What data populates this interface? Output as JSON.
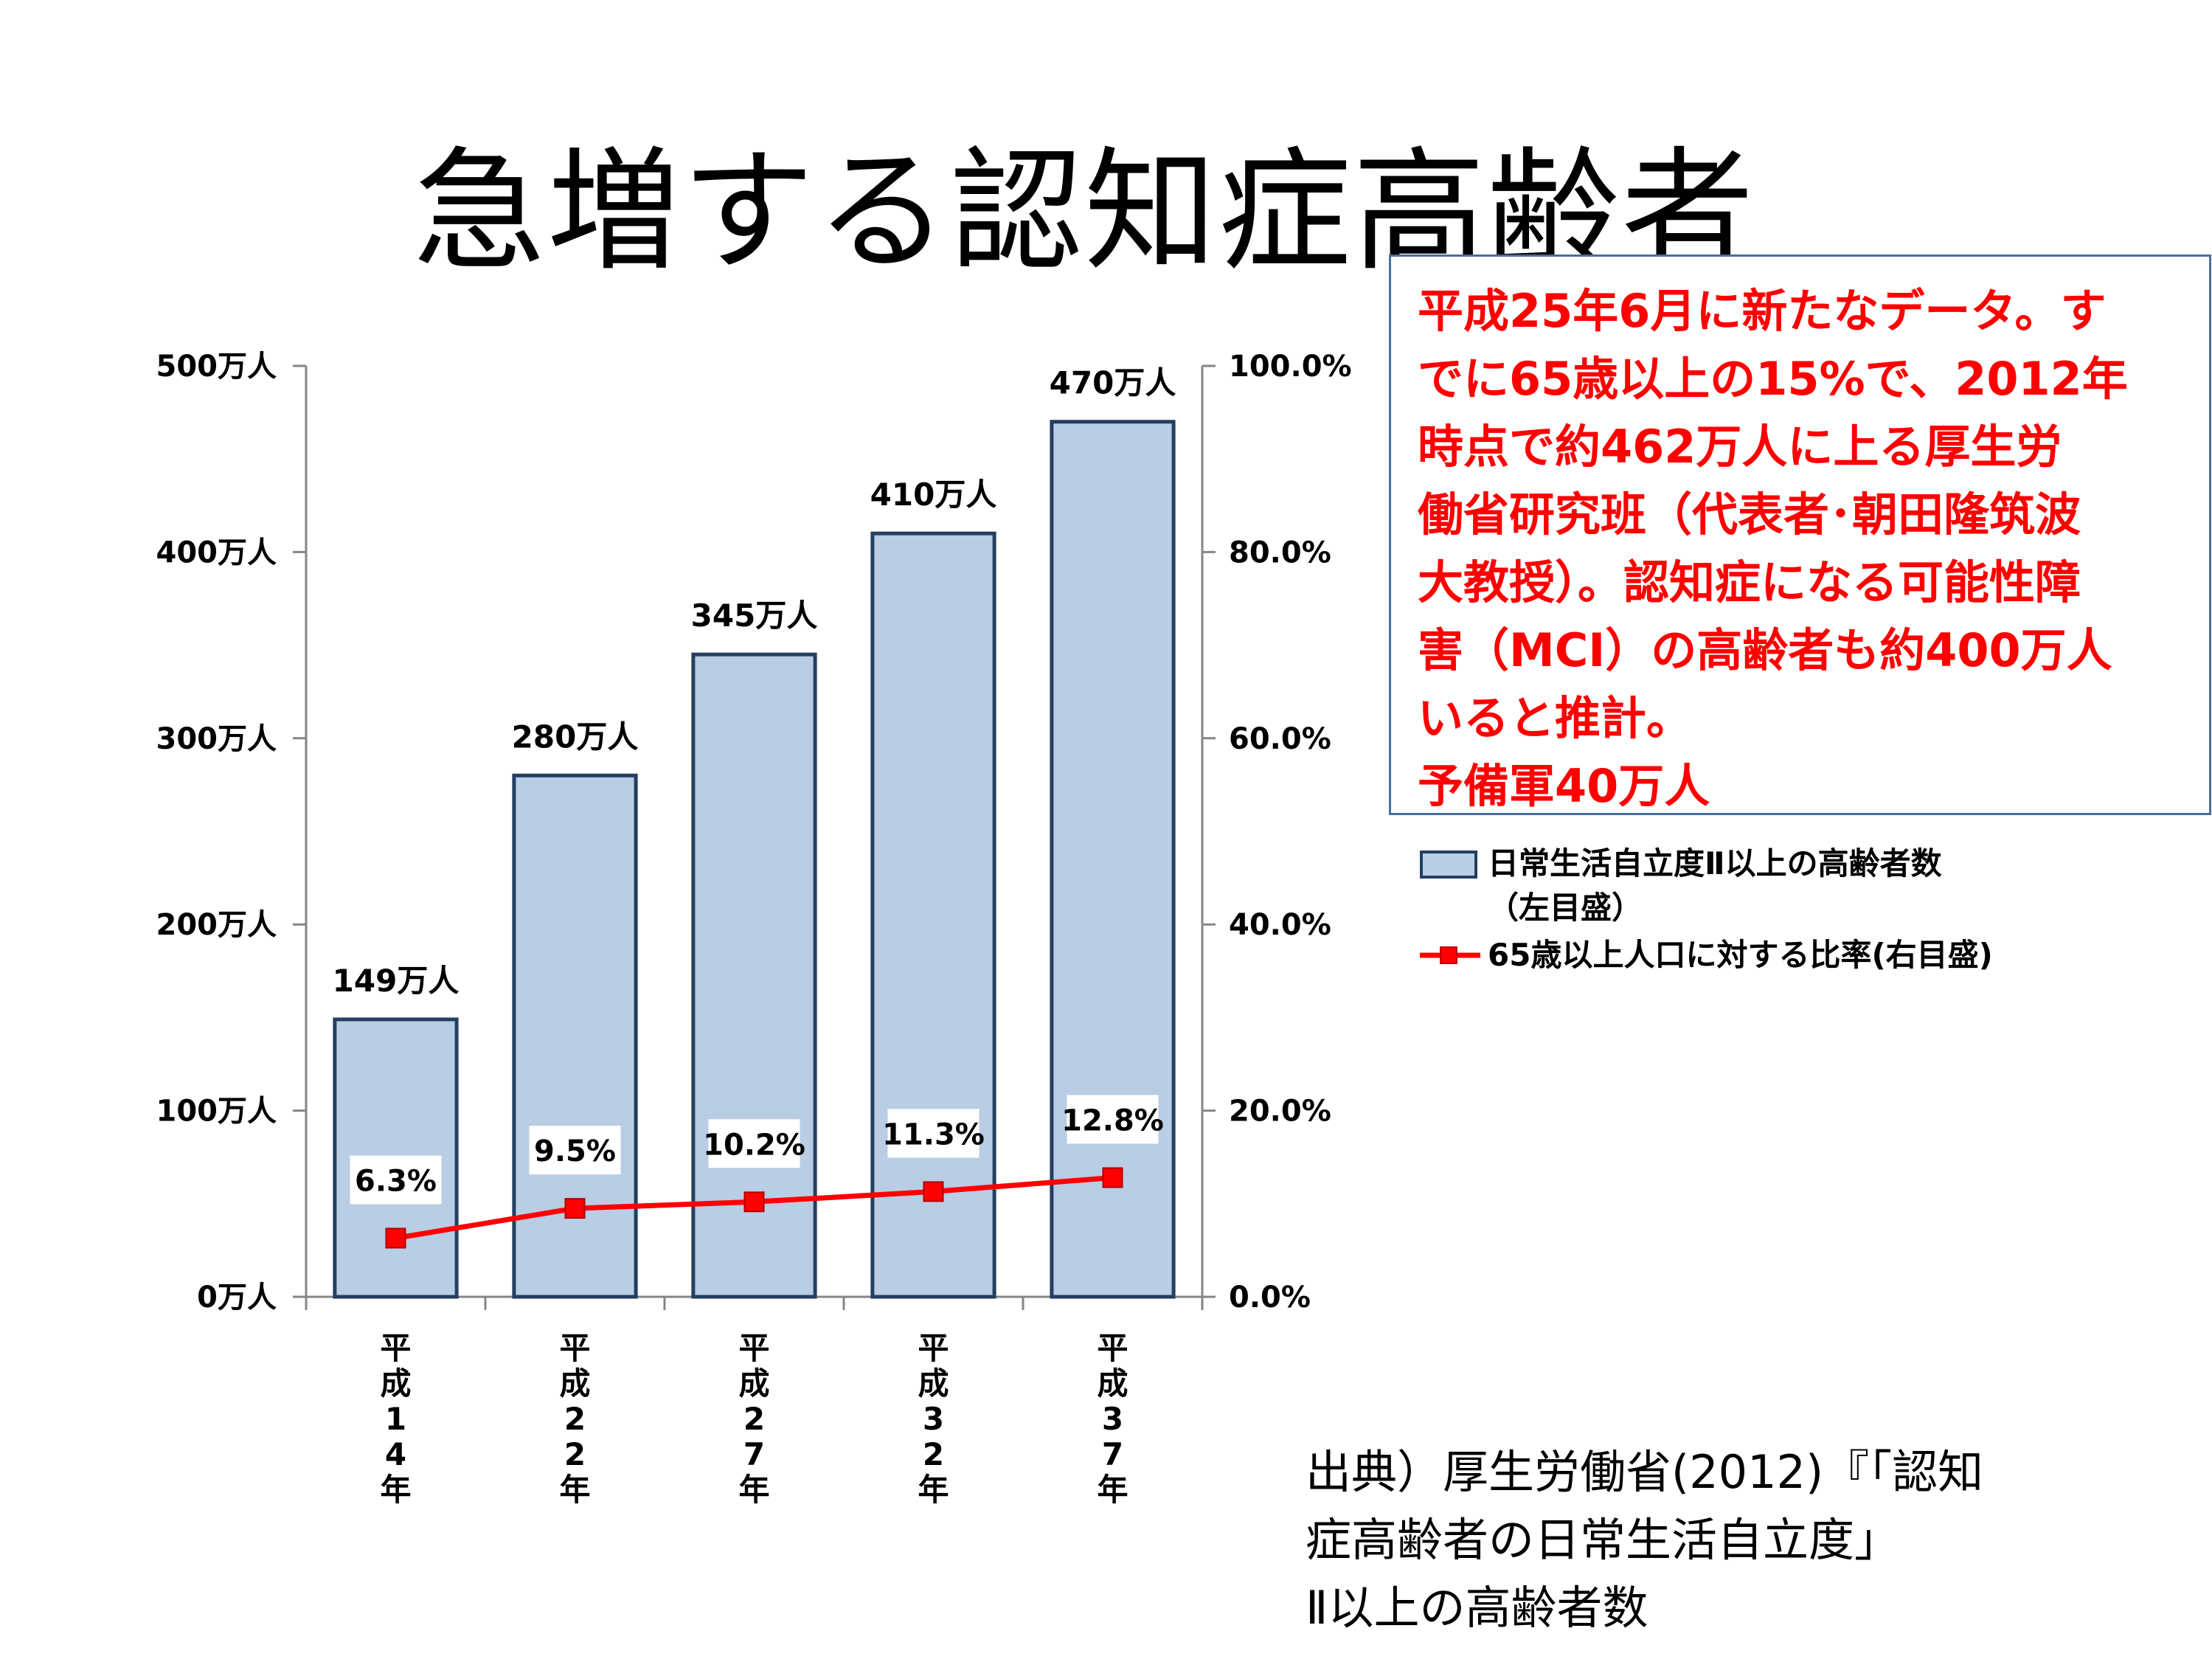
{
  "title": "急増する認知症高齢者",
  "note": {
    "lines": [
      "平成25年6月に新たなデータ。す",
      "でに65歳以上の15%で、2012年",
      "時点で約462万人に上る厚生労",
      "働省研究班（代表者･朝田隆筑波",
      "大教授）。認知症になる可能性障",
      "害（MCI）の高齢者も約400万人",
      "いると推計。",
      "予備軍40万人"
    ]
  },
  "legend": {
    "bar_label": "日常生活自立度Ⅱ以上の高齢者数",
    "bar_sublabel": "（左目盛）",
    "line_label": "65歳以上人口に対する比率(右目盛)"
  },
  "source": {
    "lines": [
      "出典）厚生労働省(2012)『「認知",
      "症高齢者の日常生活自立度」",
      "Ⅱ以上の高齢者数"
    ]
  },
  "chart_data": {
    "type": "bar",
    "categories": [
      "平成14年",
      "平成22年",
      "平成27年",
      "平成32年",
      "平成37年"
    ],
    "category_chars": [
      [
        "平",
        "成",
        "1",
        "4",
        "年"
      ],
      [
        "平",
        "成",
        "2",
        "2",
        "年"
      ],
      [
        "平",
        "成",
        "2",
        "7",
        "年"
      ],
      [
        "平",
        "成",
        "3",
        "2",
        "年"
      ],
      [
        "平",
        "成",
        "3",
        "7",
        "年"
      ]
    ],
    "series": [
      {
        "name": "日常生活自立度Ⅱ以上の高齢者数（左目盛）",
        "type": "bar",
        "axis": "left",
        "values": [
          149,
          280,
          345,
          410,
          470
        ],
        "labels": [
          "149万人",
          "280万人",
          "345万人",
          "410万人",
          "470万人"
        ],
        "color": "#b9cde5",
        "border_color": "#243f60"
      },
      {
        "name": "65歳以上人口に対する比率(右目盛)",
        "type": "line",
        "axis": "right",
        "values": [
          6.3,
          9.5,
          10.2,
          11.3,
          12.8
        ],
        "labels": [
          "6.3%",
          "9.5%",
          "10.2%",
          "11.3%",
          "12.8%"
        ],
        "color": "#ff0000"
      }
    ],
    "y_left": {
      "min": 0,
      "max": 500,
      "ticks": [
        0,
        100,
        200,
        300,
        400,
        500
      ],
      "tick_labels": [
        "0万人",
        "100万人",
        "200万人",
        "300万人",
        "400万人",
        "500万人"
      ]
    },
    "y_right": {
      "min": 0,
      "max": 100,
      "ticks": [
        0,
        20,
        40,
        60,
        80,
        100
      ],
      "tick_labels": [
        "0.0%",
        "20.0%",
        "40.0%",
        "60.0%",
        "80.0%",
        "100.0%"
      ]
    },
    "grid": false,
    "legend_position": "right"
  }
}
